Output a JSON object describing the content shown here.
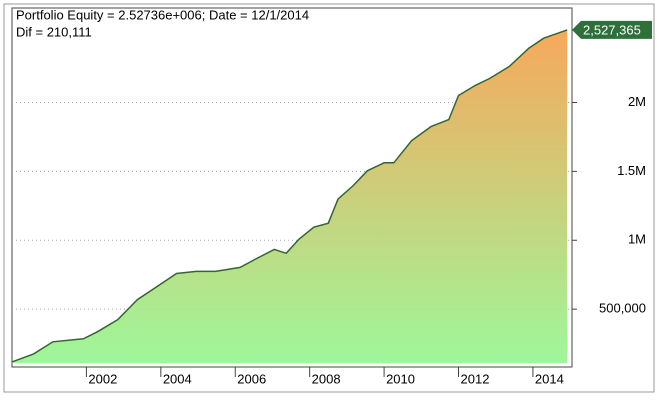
{
  "chart_data": {
    "type": "area",
    "title": "Portfolio Equity = 2.52736e+006; Date = 12/1/2014",
    "subtitle": "Dif = 210,111",
    "x": [
      2000.0,
      2000.58,
      2001.1,
      2001.92,
      2002.3,
      2002.84,
      2003.37,
      2003.9,
      2004.42,
      2004.95,
      2005.47,
      2006.13,
      2006.53,
      2007.05,
      2007.37,
      2007.71,
      2008.11,
      2008.5,
      2008.76,
      2009.16,
      2009.55,
      2010.0,
      2010.26,
      2010.74,
      2011.26,
      2011.74,
      2012.0,
      2012.45,
      2012.84,
      2013.37,
      2013.89,
      2014.29,
      2014.92
    ],
    "values": [
      117000,
      175000,
      263000,
      285000,
      336000,
      423000,
      569000,
      664000,
      759000,
      774000,
      774000,
      803000,
      861000,
      934000,
      905000,
      1007000,
      1095000,
      1124000,
      1299000,
      1394000,
      1504000,
      1562000,
      1562000,
      1723000,
      1825000,
      1876000,
      2051000,
      2124000,
      2175000,
      2263000,
      2394000,
      2467000,
      2527365
    ],
    "value_labels": [
      null,
      null,
      null,
      null,
      null,
      null,
      null,
      null,
      null,
      null,
      null,
      null,
      null,
      null,
      null,
      null,
      null,
      null,
      null,
      null,
      null,
      null,
      null,
      null,
      null,
      null,
      null,
      null,
      null,
      null,
      null,
      null,
      "2,527,365"
    ],
    "line_color": "#336633",
    "fill_top": "#f7a85c",
    "fill_bottom": "#9ef79a",
    "label_color": "#2f6f3a",
    "xlim": [
      2000.0,
      2015.05
    ],
    "xticks": [
      2002,
      2004,
      2006,
      2008,
      2010,
      2012,
      2014
    ],
    "ylim": [
      80000,
      2686000
    ],
    "yticks": [
      {
        "value": 500000,
        "label": "500,000"
      },
      {
        "value": 1000000,
        "label": "1M"
      },
      {
        "value": 1500000,
        "label": "1.5M"
      },
      {
        "value": 2000000,
        "label": "2M"
      }
    ],
    "grid": true
  }
}
